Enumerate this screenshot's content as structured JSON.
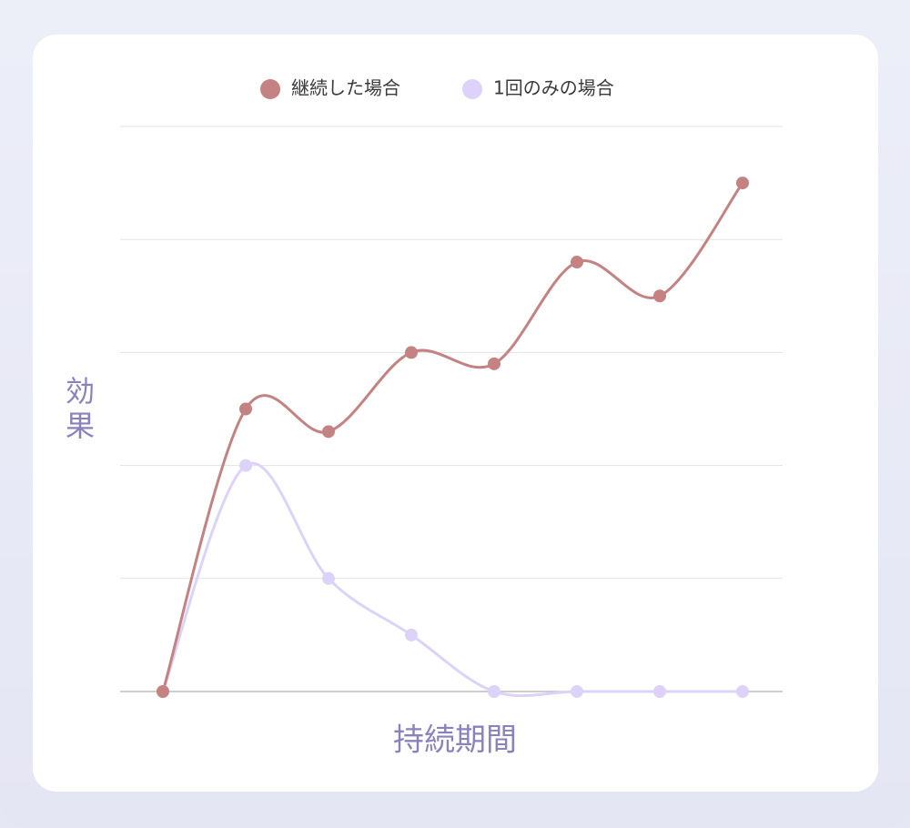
{
  "chart_data": {
    "type": "line",
    "title": "",
    "xlabel": "持続期間",
    "ylabel": "効果",
    "x": [
      0,
      1,
      2,
      3,
      4,
      5,
      6,
      7
    ],
    "ylim": [
      0,
      5
    ],
    "grid": true,
    "legend_position": "top-center",
    "series": [
      {
        "name": "継続した場合",
        "color": "#C48282",
        "values": [
          0,
          2.5,
          2.3,
          3.0,
          2.9,
          3.8,
          3.5,
          4.5
        ]
      },
      {
        "name": "1回のみの場合",
        "color": "#DDD3FA",
        "values": [
          0,
          2.0,
          1.0,
          0.5,
          0.0,
          0.0,
          0.0,
          0.0
        ]
      }
    ]
  }
}
